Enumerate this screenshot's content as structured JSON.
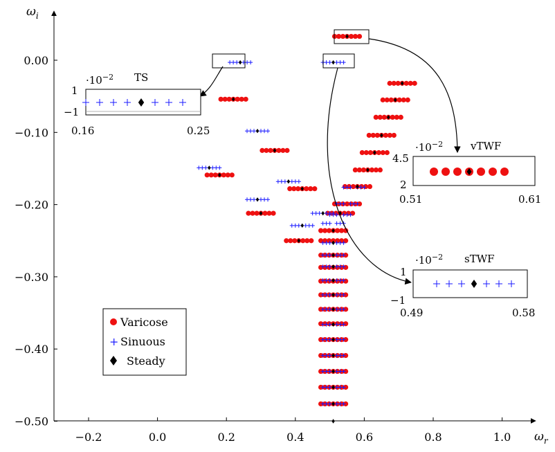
{
  "chart_data": {
    "type": "scatter",
    "xlabel": "ω_r",
    "ylabel": "ω_i",
    "xlabel_main": "ω",
    "xlabel_sub": "r",
    "ylabel_main": "ω",
    "ylabel_sub": "i",
    "xlim": [
      -0.3,
      1.1
    ],
    "ylim": [
      -0.5,
      0.06
    ],
    "xticks": [
      "−0.2",
      "0.0",
      "0.2",
      "0.4",
      "0.6",
      "0.8",
      "1.0"
    ],
    "xtick_values": [
      -0.2,
      0.0,
      0.2,
      0.4,
      0.6,
      0.8,
      1.0
    ],
    "yticks": [
      "0.00",
      "−0.10",
      "−0.20",
      "−0.30",
      "−0.40",
      "−0.50"
    ],
    "ytick_values": [
      0.0,
      -0.1,
      -0.2,
      -0.3,
      -0.4,
      -0.5
    ],
    "legend": {
      "position": "bottom-left",
      "entries": [
        {
          "name": "Varicose",
          "marker": "circle",
          "color": "#ee1111"
        },
        {
          "name": "Sinuous",
          "marker": "plus",
          "color": "#1a1aff"
        },
        {
          "name": "Steady",
          "marker": "diamond",
          "color": "#000000"
        }
      ]
    },
    "series": [
      {
        "name": "Varicose",
        "points": [
          {
            "x": 0.55,
            "y": 0.033
          },
          {
            "x": 0.22,
            "y": -0.054
          },
          {
            "x": 0.71,
            "y": -0.032
          },
          {
            "x": 0.69,
            "y": -0.055
          },
          {
            "x": 0.67,
            "y": -0.079
          },
          {
            "x": 0.65,
            "y": -0.104
          },
          {
            "x": 0.63,
            "y": -0.128
          },
          {
            "x": 0.61,
            "y": -0.152
          },
          {
            "x": 0.34,
            "y": -0.125
          },
          {
            "x": 0.18,
            "y": -0.159
          },
          {
            "x": 0.58,
            "y": -0.175
          },
          {
            "x": 0.42,
            "y": -0.178
          },
          {
            "x": 0.55,
            "y": -0.199
          },
          {
            "x": 0.3,
            "y": -0.212
          },
          {
            "x": 0.53,
            "y": -0.212
          },
          {
            "x": 0.51,
            "y": -0.236
          },
          {
            "x": 0.41,
            "y": -0.25
          },
          {
            "x": 0.51,
            "y": -0.25
          },
          {
            "x": 0.51,
            "y": -0.27
          },
          {
            "x": 0.51,
            "y": -0.287
          },
          {
            "x": 0.51,
            "y": -0.306
          },
          {
            "x": 0.51,
            "y": -0.325
          },
          {
            "x": 0.51,
            "y": -0.345
          },
          {
            "x": 0.51,
            "y": -0.365
          },
          {
            "x": 0.51,
            "y": -0.387
          },
          {
            "x": 0.51,
            "y": -0.409
          },
          {
            "x": 0.51,
            "y": -0.431
          },
          {
            "x": 0.51,
            "y": -0.453
          },
          {
            "x": 0.51,
            "y": -0.476
          }
        ]
      },
      {
        "name": "Sinuous",
        "points": [
          {
            "x": 0.51,
            "y": -0.003
          },
          {
            "x": 0.24,
            "y": -0.003
          },
          {
            "x": 0.29,
            "y": -0.098
          },
          {
            "x": 0.15,
            "y": -0.149
          },
          {
            "x": 0.38,
            "y": -0.168
          },
          {
            "x": 0.57,
            "y": -0.176
          },
          {
            "x": 0.29,
            "y": -0.193
          },
          {
            "x": 0.55,
            "y": -0.199
          },
          {
            "x": 0.48,
            "y": -0.212
          },
          {
            "x": 0.53,
            "y": -0.214
          },
          {
            "x": 0.42,
            "y": -0.229
          },
          {
            "x": 0.51,
            "y": -0.226
          },
          {
            "x": 0.51,
            "y": -0.253
          },
          {
            "x": 0.51,
            "y": -0.27
          },
          {
            "x": 0.51,
            "y": -0.286
          },
          {
            "x": 0.51,
            "y": -0.305
          },
          {
            "x": 0.51,
            "y": -0.325
          },
          {
            "x": 0.51,
            "y": -0.345
          },
          {
            "x": 0.51,
            "y": -0.366
          },
          {
            "x": 0.51,
            "y": -0.387
          },
          {
            "x": 0.51,
            "y": -0.409
          },
          {
            "x": 0.51,
            "y": -0.431
          },
          {
            "x": 0.51,
            "y": -0.453
          },
          {
            "x": 0.51,
            "y": -0.476
          }
        ]
      },
      {
        "name": "Steady",
        "points": [
          {
            "x": 0.55,
            "y": 0.033
          },
          {
            "x": 0.22,
            "y": -0.054
          },
          {
            "x": 0.71,
            "y": -0.032
          },
          {
            "x": 0.69,
            "y": -0.055
          },
          {
            "x": 0.67,
            "y": -0.079
          },
          {
            "x": 0.65,
            "y": -0.104
          },
          {
            "x": 0.63,
            "y": -0.128
          },
          {
            "x": 0.61,
            "y": -0.152
          },
          {
            "x": 0.34,
            "y": -0.125
          },
          {
            "x": 0.18,
            "y": -0.159
          },
          {
            "x": 0.58,
            "y": -0.175
          },
          {
            "x": 0.42,
            "y": -0.178
          },
          {
            "x": 0.3,
            "y": -0.212
          },
          {
            "x": 0.53,
            "y": -0.212
          },
          {
            "x": 0.51,
            "y": -0.236
          },
          {
            "x": 0.41,
            "y": -0.25
          },
          {
            "x": 0.51,
            "y": -0.003
          },
          {
            "x": 0.24,
            "y": -0.003
          },
          {
            "x": 0.29,
            "y": -0.098
          },
          {
            "x": 0.15,
            "y": -0.149
          },
          {
            "x": 0.38,
            "y": -0.168
          },
          {
            "x": 0.29,
            "y": -0.193
          },
          {
            "x": 0.48,
            "y": -0.212
          },
          {
            "x": 0.42,
            "y": -0.229
          },
          {
            "x": 0.51,
            "y": -0.253
          },
          {
            "x": 0.51,
            "y": -0.27
          },
          {
            "x": 0.51,
            "y": -0.286
          },
          {
            "x": 0.51,
            "y": -0.305
          },
          {
            "x": 0.51,
            "y": -0.325
          },
          {
            "x": 0.51,
            "y": -0.345
          },
          {
            "x": 0.51,
            "y": -0.366
          },
          {
            "x": 0.51,
            "y": -0.387
          },
          {
            "x": 0.51,
            "y": -0.409
          },
          {
            "x": 0.51,
            "y": -0.431
          },
          {
            "x": 0.51,
            "y": -0.453
          },
          {
            "x": 0.51,
            "y": -0.476
          },
          {
            "x": 0.51,
            "y": -0.5
          }
        ]
      }
    ],
    "insets": [
      {
        "id": "ts",
        "title": "TS",
        "scale": "·10",
        "scale_exp": "−2",
        "xmin_label": "0.16",
        "xmax_label": "0.25",
        "ytop_label": "1",
        "ybottom_label": "−1",
        "marker": "plus"
      },
      {
        "id": "vtwf",
        "title": "vTWF",
        "scale": "·10",
        "scale_exp": "−2",
        "xmin_label": "0.51",
        "xmax_label": "0.61",
        "ytop_label": "4.5",
        "ybottom_label": "2",
        "marker": "circle"
      },
      {
        "id": "stwf",
        "title": "sTWF",
        "scale": "·10",
        "scale_exp": "−2",
        "xmin_label": "0.49",
        "xmax_label": "0.58",
        "ytop_label": "1",
        "ybottom_label": "−1",
        "marker": "plus"
      }
    ],
    "colors": {
      "varicose": "#ee1111",
      "sinuous": "#1a1aff",
      "steady": "#000000"
    }
  }
}
